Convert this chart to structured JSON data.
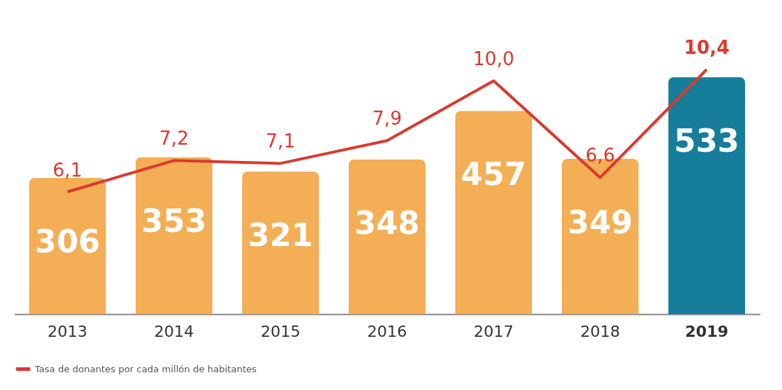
{
  "chart_data": {
    "type": "bar",
    "categories": [
      "2013",
      "2014",
      "2015",
      "2016",
      "2017",
      "2018",
      "2019"
    ],
    "legend": "bottom",
    "series": [
      {
        "type": "bar",
        "colors": [
          "#f4ae55",
          "#f4ae55",
          "#f4ae55",
          "#f4ae55",
          "#f4ae55",
          "#f4ae55",
          "#167e9a"
        ],
        "values": [
          306,
          353,
          321,
          348,
          457,
          349,
          533
        ],
        "value_labels": [
          "306",
          "353",
          "321",
          "348",
          "457",
          "349",
          "533"
        ]
      },
      {
        "type": "line",
        "axis": "y2",
        "name": "Tasa de donantes por cada millón de habitantes",
        "color": "#d93a2f",
        "values": [
          6.1,
          7.2,
          7.1,
          7.9,
          10.0,
          6.6,
          10.4
        ],
        "value_labels": [
          "6,1",
          "7,2",
          "7,1",
          "7,9",
          "10,0",
          "6,6",
          "10,4"
        ]
      }
    ]
  }
}
